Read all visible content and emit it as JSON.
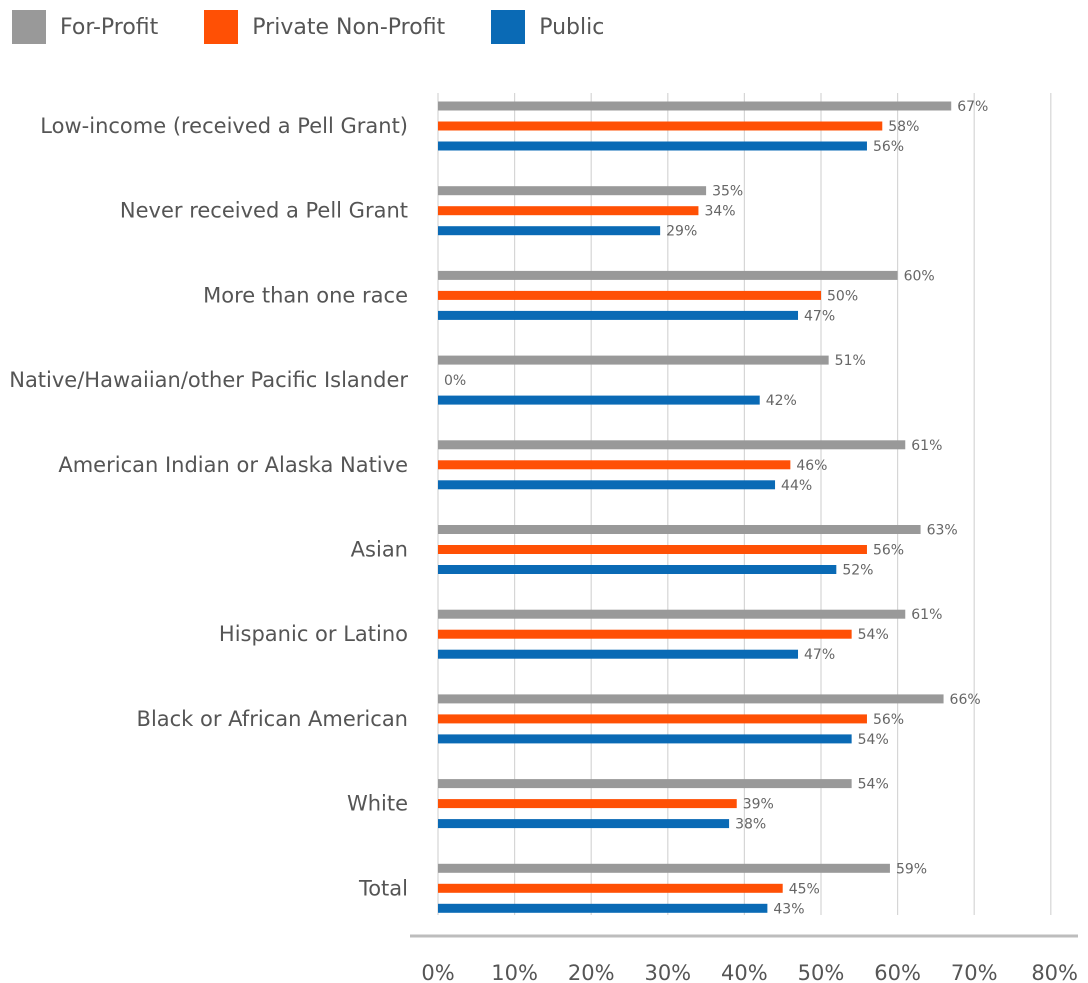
{
  "chart_data": {
    "type": "bar",
    "orientation": "horizontal",
    "categories": [
      "Low-income (received a Pell Grant)",
      "Never received a Pell Grant",
      "More than one race",
      "Native/Hawaiian/other Pacific Islander",
      "American Indian or Alaska Native",
      "Asian",
      "Hispanic or Latino",
      "Black or African American",
      "White",
      "Total"
    ],
    "series": [
      {
        "name": "For-Profit",
        "color": "#999999",
        "values": [
          67,
          35,
          60,
          51,
          61,
          63,
          61,
          66,
          54,
          59
        ]
      },
      {
        "name": "Private Non-Profit",
        "color": "#FF5005",
        "values": [
          58,
          34,
          50,
          0,
          46,
          56,
          54,
          56,
          39,
          45
        ]
      },
      {
        "name": "Public",
        "color": "#0A6AB5",
        "values": [
          56,
          29,
          47,
          42,
          44,
          52,
          47,
          54,
          38,
          43
        ]
      }
    ],
    "xlim": [
      0,
      80
    ],
    "x_ticks": [
      "0%",
      "10%",
      "20%",
      "30%",
      "40%",
      "50%",
      "60%",
      "70%",
      "80%"
    ],
    "value_suffix": "%",
    "grid": true,
    "legend_position": "top-left"
  }
}
